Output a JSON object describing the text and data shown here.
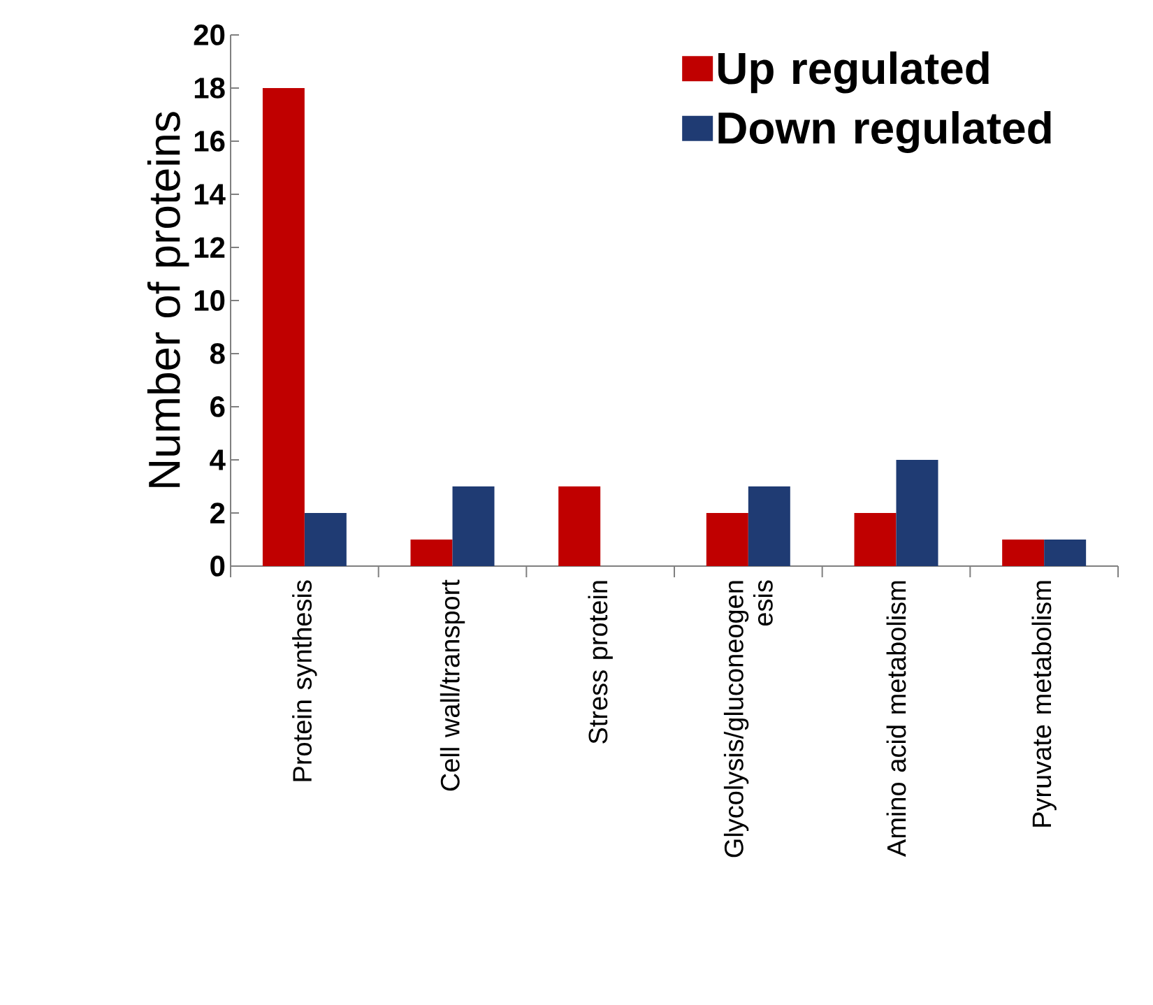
{
  "chart_data": {
    "type": "bar",
    "ylabel": "Number of proteins",
    "categories": [
      "Protein synthesis",
      "Cell wall/transport",
      "Stress protein",
      "Glycolysis/gluconeogen esis",
      "Amino acid metabolism",
      "Pyruvate metabolism"
    ],
    "series": [
      {
        "name": "Up regulated",
        "color": "#c00000",
        "values": [
          18,
          1,
          3,
          2,
          2,
          1
        ]
      },
      {
        "name": "Down regulated",
        "color": "#1f3b73",
        "values": [
          2,
          3,
          null,
          3,
          4,
          1
        ]
      }
    ],
    "ylim": [
      0,
      20
    ],
    "yticks": [
      0,
      2,
      4,
      6,
      8,
      10,
      12,
      14,
      16,
      18,
      20
    ],
    "grid": false,
    "legend": "top right"
  }
}
